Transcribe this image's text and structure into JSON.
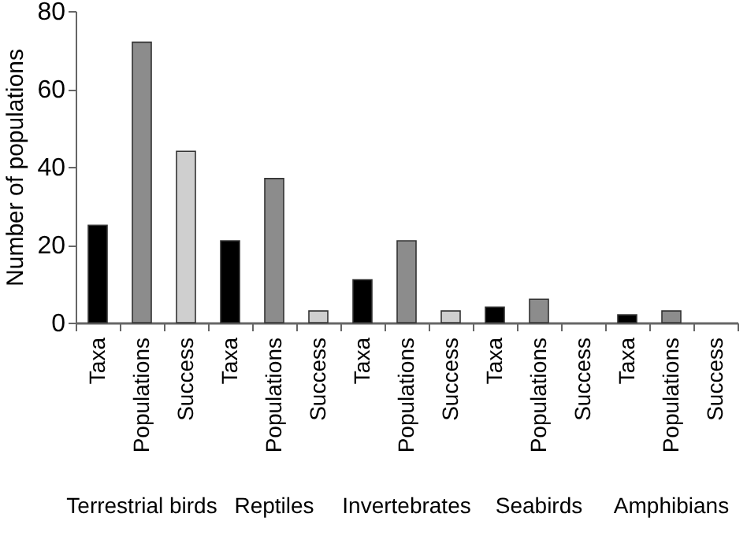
{
  "chart_data": {
    "type": "bar",
    "ylabel": "Number of populations",
    "categories": [
      "Taxa",
      "Populations",
      "Success",
      "Taxa",
      "Populations",
      "Success",
      "Taxa",
      "Populations",
      "Success",
      "Taxa",
      "Populations",
      "Success",
      "Taxa",
      "Populations",
      "Success"
    ],
    "values": [
      25,
      72,
      44,
      21,
      37,
      3,
      11,
      21,
      3,
      4,
      6,
      0,
      2,
      3,
      0
    ],
    "colors": [
      "#000000",
      "#8c8c8c",
      "#cfcfcf",
      "#000000",
      "#8c8c8c",
      "#cfcfcf",
      "#000000",
      "#8c8c8c",
      "#cfcfcf",
      "#000000",
      "#8c8c8c",
      "#cfcfcf",
      "#000000",
      "#8c8c8c",
      "#cfcfcf"
    ],
    "annotations": [
      "Terrestrial birds",
      "Reptiles",
      "Invertebrates",
      "Seabirds",
      "Amphibians"
    ],
    "ylim": [
      0,
      80
    ],
    "yticks": [
      0,
      20,
      40,
      60,
      80
    ],
    "grid": false
  }
}
